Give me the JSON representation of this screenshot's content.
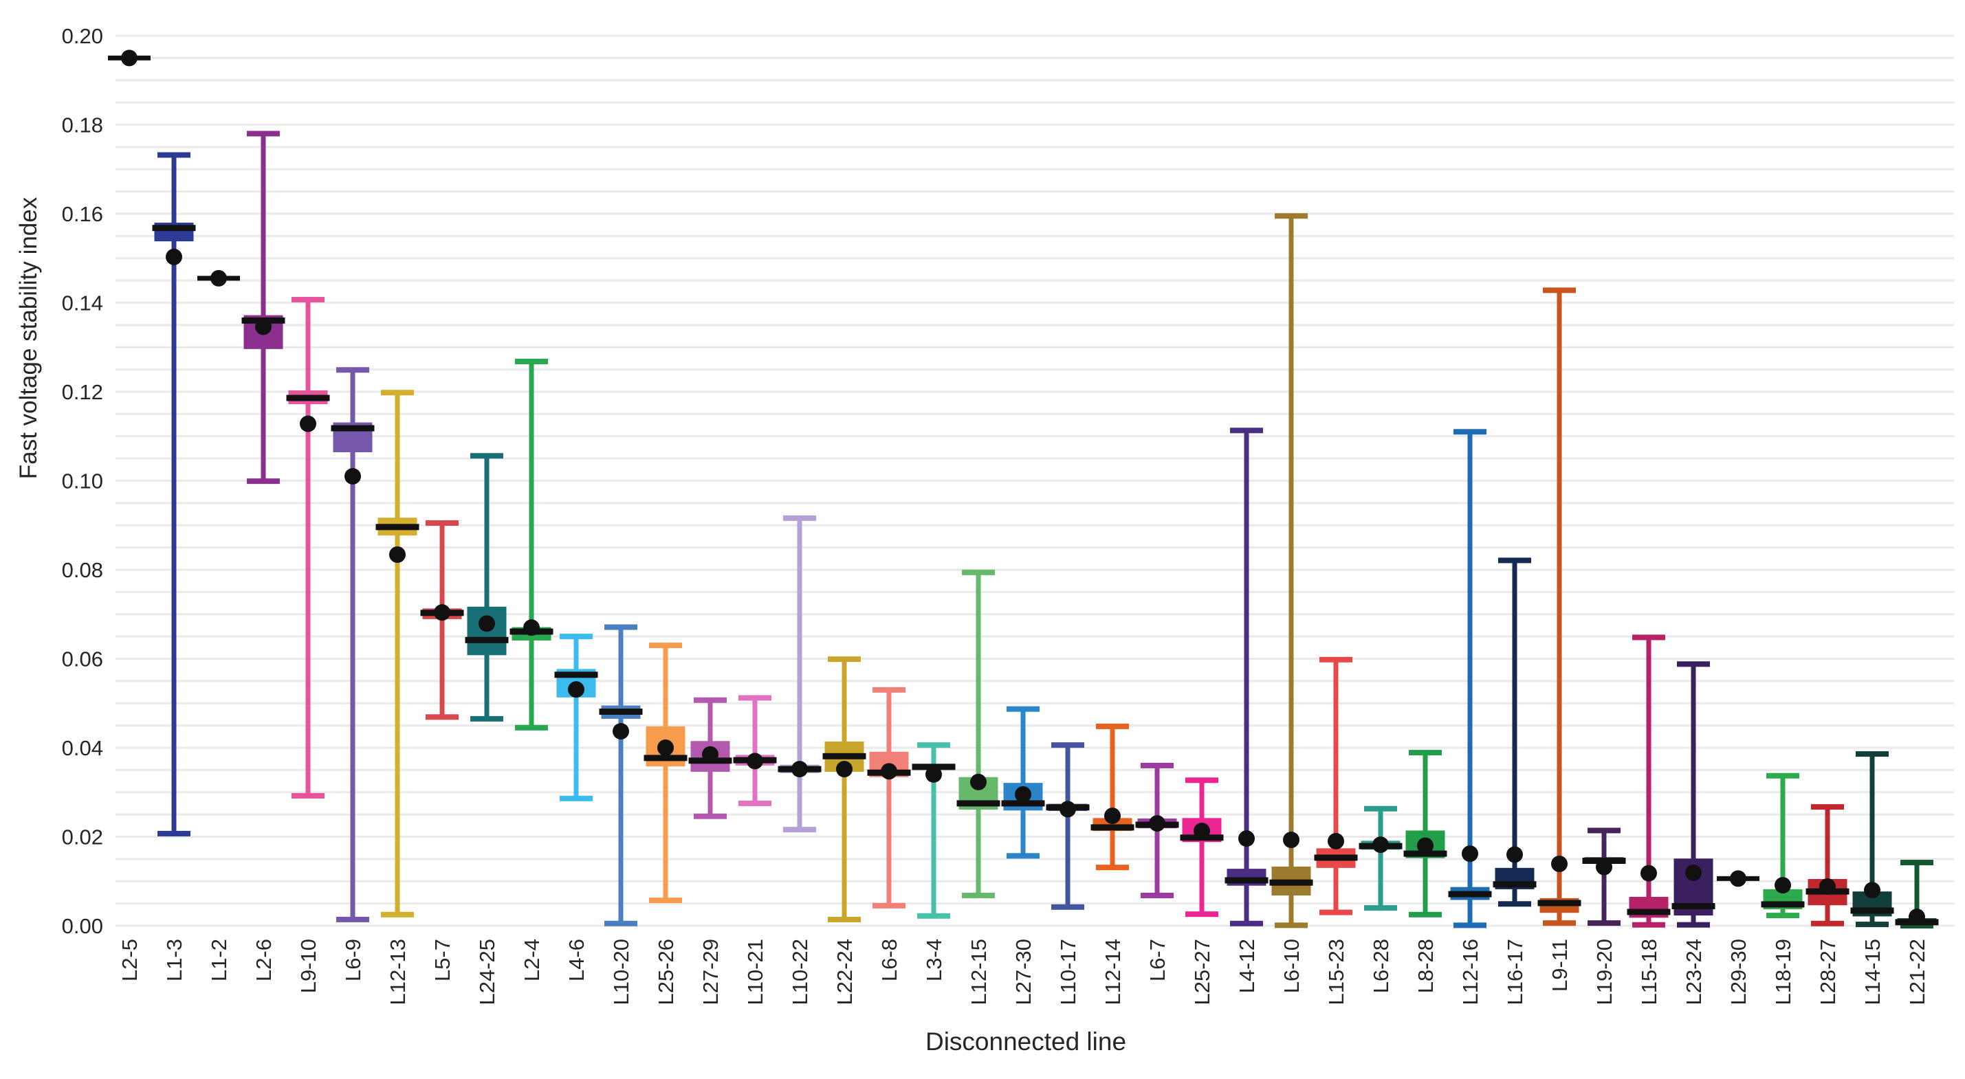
{
  "chart_data": {
    "type": "boxplot",
    "xlabel": "Disconnected line",
    "ylabel": "Fast voltage stability index",
    "ylim": [
      0.0,
      0.2
    ],
    "ytick_step": 0.02,
    "ytick_labels": [
      "0.00",
      "0.02",
      "0.04",
      "0.06",
      "0.08",
      "0.10",
      "0.12",
      "0.14",
      "0.16",
      "0.18",
      "0.20"
    ],
    "gridline_step": 0.005,
    "grid": "horizontal-only",
    "legend": "none",
    "categories": [
      "L2-5",
      "L1-3",
      "L1-2",
      "L2-6",
      "L9-10",
      "L6-9",
      "L12-13",
      "L5-7",
      "L24-25",
      "L2-4",
      "L4-6",
      "L10-20",
      "L25-26",
      "L27-29",
      "L10-21",
      "L10-22",
      "L22-24",
      "L6-8",
      "L3-4",
      "L12-15",
      "L27-30",
      "L10-17",
      "L12-14",
      "L6-7",
      "L25-27",
      "L4-12",
      "L6-10",
      "L15-23",
      "L6-28",
      "L8-28",
      "L12-16",
      "L16-17",
      "L9-11",
      "L19-20",
      "L15-18",
      "L23-24",
      "L29-30",
      "L18-19",
      "L28-27",
      "L14-15",
      "L21-22"
    ],
    "boxes": [
      {
        "label": "L2-5",
        "color": "#111111",
        "flat": true,
        "value": 0.195,
        "low": 0.195,
        "q1": 0.195,
        "median": 0.195,
        "q3": 0.195,
        "high": 0.195,
        "mean": 0.195
      },
      {
        "label": "L1-3",
        "color": "#2b3b96",
        "low": 0.0207,
        "q1": 0.1538,
        "median": 0.1568,
        "q3": 0.158,
        "high": 0.1732,
        "mean": 0.1503
      },
      {
        "label": "L1-2",
        "color": "#111111",
        "flat": true,
        "value": 0.1455,
        "low": 0.1455,
        "q1": 0.1455,
        "median": 0.1455,
        "q3": 0.1455,
        "high": 0.1455,
        "mean": 0.1455
      },
      {
        "label": "L2-6",
        "color": "#8b2f8f",
        "low": 0.0999,
        "q1": 0.1296,
        "median": 0.136,
        "q3": 0.1372,
        "high": 0.178,
        "mean": 0.1346
      },
      {
        "label": "L9-10",
        "color": "#e8549b",
        "low": 0.0292,
        "q1": 0.1172,
        "median": 0.1186,
        "q3": 0.1203,
        "high": 0.1407,
        "mean": 0.1128
      },
      {
        "label": "L6-9",
        "color": "#7557ab",
        "low": 0.0014,
        "q1": 0.1064,
        "median": 0.1118,
        "q3": 0.1131,
        "high": 0.1249,
        "mean": 0.101
      },
      {
        "label": "L12-13",
        "color": "#d4af2e",
        "low": 0.0025,
        "q1": 0.0877,
        "median": 0.0896,
        "q3": 0.0917,
        "high": 0.1198,
        "mean": 0.0834
      },
      {
        "label": "L5-7",
        "color": "#d8474b",
        "low": 0.0469,
        "q1": 0.0689,
        "median": 0.0703,
        "q3": 0.0713,
        "high": 0.0905,
        "mean": 0.0704
      },
      {
        "label": "L24-25",
        "color": "#186f75",
        "low": 0.0465,
        "q1": 0.0608,
        "median": 0.0642,
        "q3": 0.0717,
        "high": 0.1056,
        "mean": 0.0679
      },
      {
        "label": "L2-4",
        "color": "#27a84f",
        "low": 0.0445,
        "q1": 0.0641,
        "median": 0.0661,
        "q3": 0.0671,
        "high": 0.1268,
        "mean": 0.067
      },
      {
        "label": "L4-6",
        "color": "#3cbcee",
        "low": 0.0286,
        "q1": 0.0513,
        "median": 0.0564,
        "q3": 0.0577,
        "high": 0.065,
        "mean": 0.0531
      },
      {
        "label": "L10-20",
        "color": "#4a80c0",
        "low": 0.0005,
        "q1": 0.0465,
        "median": 0.0481,
        "q3": 0.0495,
        "high": 0.0671,
        "mean": 0.0437
      },
      {
        "label": "L25-26",
        "color": "#f79b4d",
        "low": 0.0057,
        "q1": 0.0358,
        "median": 0.0377,
        "q3": 0.0448,
        "high": 0.063,
        "mean": 0.04
      },
      {
        "label": "L27-29",
        "color": "#b259ae",
        "low": 0.0246,
        "q1": 0.0346,
        "median": 0.0371,
        "q3": 0.0415,
        "high": 0.0507,
        "mean": 0.0385
      },
      {
        "label": "L10-21",
        "color": "#e273c3",
        "low": 0.0275,
        "q1": 0.036,
        "median": 0.0372,
        "q3": 0.0384,
        "high": 0.0512,
        "mean": 0.037
      },
      {
        "label": "L10-22",
        "color": "#b5a1d8",
        "low": 0.0216,
        "q1": 0.0343,
        "median": 0.0352,
        "q3": 0.0362,
        "high": 0.0916,
        "mean": 0.0352
      },
      {
        "label": "L22-24",
        "color": "#c8a62c",
        "low": 0.0014,
        "q1": 0.0346,
        "median": 0.0381,
        "q3": 0.0414,
        "high": 0.0599,
        "mean": 0.0352
      },
      {
        "label": "L6-8",
        "color": "#f08078",
        "low": 0.0045,
        "q1": 0.0334,
        "median": 0.0344,
        "q3": 0.0391,
        "high": 0.053,
        "mean": 0.0347
      },
      {
        "label": "L3-4",
        "color": "#46c0a8",
        "low": 0.0022,
        "q1": 0.035,
        "median": 0.0357,
        "q3": 0.0364,
        "high": 0.0406,
        "mean": 0.034
      },
      {
        "label": "L12-15",
        "color": "#66b96a",
        "low": 0.0068,
        "q1": 0.0261,
        "median": 0.0275,
        "q3": 0.0334,
        "high": 0.0794,
        "mean": 0.0323
      },
      {
        "label": "L27-30",
        "color": "#2b85c8",
        "low": 0.0157,
        "q1": 0.0259,
        "median": 0.0275,
        "q3": 0.0321,
        "high": 0.0487,
        "mean": 0.0295
      },
      {
        "label": "L10-17",
        "color": "#44549e",
        "low": 0.0042,
        "q1": 0.0258,
        "median": 0.0266,
        "q3": 0.0274,
        "high": 0.0406,
        "mean": 0.0262
      },
      {
        "label": "L12-14",
        "color": "#e8611e",
        "low": 0.0131,
        "q1": 0.0213,
        "median": 0.0221,
        "q3": 0.0242,
        "high": 0.0448,
        "mean": 0.0247
      },
      {
        "label": "L6-7",
        "color": "#9b3a9f",
        "low": 0.0068,
        "q1": 0.0219,
        "median": 0.0227,
        "q3": 0.0241,
        "high": 0.036,
        "mean": 0.023
      },
      {
        "label": "L25-27",
        "color": "#ec2592",
        "low": 0.0026,
        "q1": 0.0188,
        "median": 0.0198,
        "q3": 0.0242,
        "high": 0.0327,
        "mean": 0.0213
      },
      {
        "label": "L4-12",
        "color": "#4b2d84",
        "low": 0.0005,
        "q1": 0.009,
        "median": 0.0102,
        "q3": 0.0128,
        "high": 0.1113,
        "mean": 0.0196
      },
      {
        "label": "L6-10",
        "color": "#9c7b2e",
        "low": 0.0001,
        "q1": 0.0068,
        "median": 0.0097,
        "q3": 0.0133,
        "high": 0.1595,
        "mean": 0.0193
      },
      {
        "label": "L15-23",
        "color": "#e84848",
        "low": 0.003,
        "q1": 0.013,
        "median": 0.0153,
        "q3": 0.0174,
        "high": 0.0598,
        "mean": 0.019
      },
      {
        "label": "L6-28",
        "color": "#2a9d8f",
        "low": 0.004,
        "q1": 0.0171,
        "median": 0.0179,
        "q3": 0.0191,
        "high": 0.0263,
        "mean": 0.0182
      },
      {
        "label": "L8-28",
        "color": "#229e4a",
        "low": 0.0025,
        "q1": 0.0152,
        "median": 0.0162,
        "q3": 0.0214,
        "high": 0.0389,
        "mean": 0.018
      },
      {
        "label": "L12-16",
        "color": "#1f6cb5",
        "low": 0.0001,
        "q1": 0.0058,
        "median": 0.0071,
        "q3": 0.0087,
        "high": 0.111,
        "mean": 0.0162
      },
      {
        "label": "L16-17",
        "color": "#152a52",
        "low": 0.0049,
        "q1": 0.0082,
        "median": 0.0093,
        "q3": 0.013,
        "high": 0.0821,
        "mean": 0.016
      },
      {
        "label": "L9-11",
        "color": "#c8551d",
        "low": 0.0006,
        "q1": 0.0029,
        "median": 0.0051,
        "q3": 0.0062,
        "high": 0.1428,
        "mean": 0.0139
      },
      {
        "label": "L19-20",
        "color": "#46245a",
        "low": 0.0006,
        "q1": 0.0139,
        "median": 0.0146,
        "q3": 0.0154,
        "high": 0.0214,
        "mean": 0.0132
      },
      {
        "label": "L15-18",
        "color": "#b62268",
        "low": 0.0002,
        "q1": 0.0018,
        "median": 0.0031,
        "q3": 0.0065,
        "high": 0.0648,
        "mean": 0.0118
      },
      {
        "label": "L23-24",
        "color": "#3b2060",
        "low": 0.0002,
        "q1": 0.0023,
        "median": 0.0044,
        "q3": 0.0151,
        "high": 0.0588,
        "mean": 0.0119
      },
      {
        "label": "L29-30",
        "color": "#111111",
        "flat": true,
        "value": 0.0106,
        "low": 0.0106,
        "q1": 0.0106,
        "median": 0.0106,
        "q3": 0.0106,
        "high": 0.0106,
        "mean": 0.0106
      },
      {
        "label": "L18-19",
        "color": "#2daa4b",
        "low": 0.0023,
        "q1": 0.0037,
        "median": 0.0048,
        "q3": 0.0082,
        "high": 0.0337,
        "mean": 0.0091
      },
      {
        "label": "L28-27",
        "color": "#c0282d",
        "low": 0.0005,
        "q1": 0.0046,
        "median": 0.0077,
        "q3": 0.0105,
        "high": 0.0267,
        "mean": 0.0088
      },
      {
        "label": "L14-15",
        "color": "#123f39",
        "low": 0.0003,
        "q1": 0.0021,
        "median": 0.0034,
        "q3": 0.0077,
        "high": 0.0386,
        "mean": 0.008
      },
      {
        "label": "L21-22",
        "color": "#15572e",
        "low": 0.0,
        "q1": 0.0002,
        "median": 0.0008,
        "q3": 0.0017,
        "high": 0.0142,
        "mean": 0.002
      }
    ]
  },
  "style": {
    "grid_color": "#e9e9e9",
    "text_color": "#262626",
    "marker_color": "#111111",
    "background": "#ffffff"
  }
}
